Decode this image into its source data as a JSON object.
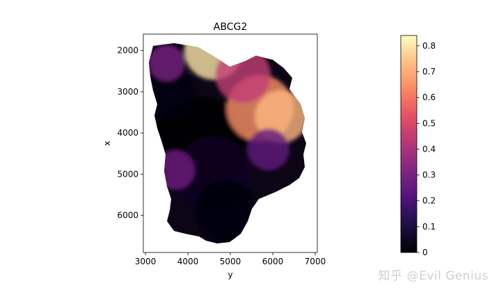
{
  "chart_data": {
    "type": "scatter",
    "title": "ABCG2",
    "xlabel": "y",
    "ylabel": "x",
    "xlim": [
      2950,
      7050
    ],
    "ylim": [
      6900,
      1600
    ],
    "y_inverted": true,
    "grid": false,
    "x_ticks": [
      3000,
      4000,
      5000,
      6000,
      7000
    ],
    "x_tick_labels": [
      "3000",
      "4000",
      "5000",
      "6000",
      "7000"
    ],
    "y_ticks": [
      2000,
      3000,
      4000,
      5000,
      6000
    ],
    "y_tick_labels": [
      "2000",
      "3000",
      "4000",
      "5000",
      "6000"
    ],
    "colormap": "magma",
    "colorbar": {
      "min": 0,
      "max": 0.84,
      "ticks": [
        0,
        0.1,
        0.2,
        0.3,
        0.4,
        0.5,
        0.6,
        0.7,
        0.8
      ],
      "tick_labels": [
        "0",
        "0.1",
        "0.2",
        "0.3",
        "0.4",
        "0.5",
        "0.6",
        "0.7",
        "0.8"
      ]
    },
    "expression_regions": [
      {
        "y": 4300,
        "x": 4300,
        "value": 0.0
      },
      {
        "y": 4600,
        "x": 5000,
        "value": 0.05
      },
      {
        "y": 4900,
        "x": 5900,
        "value": 0.02
      },
      {
        "y": 3500,
        "x": 3000,
        "value": 0.02
      },
      {
        "y": 5700,
        "x": 3400,
        "value": 0.65
      },
      {
        "y": 6200,
        "x": 3600,
        "value": 0.72
      },
      {
        "y": 4600,
        "x": 2000,
        "value": 0.8
      },
      {
        "y": 5300,
        "x": 2600,
        "value": 0.45
      },
      {
        "y": 5900,
        "x": 4400,
        "value": 0.25
      },
      {
        "y": 3700,
        "x": 4900,
        "value": 0.28
      },
      {
        "y": 3500,
        "x": 2300,
        "value": 0.3
      }
    ]
  },
  "watermark": "知乎 @Evil Genius"
}
